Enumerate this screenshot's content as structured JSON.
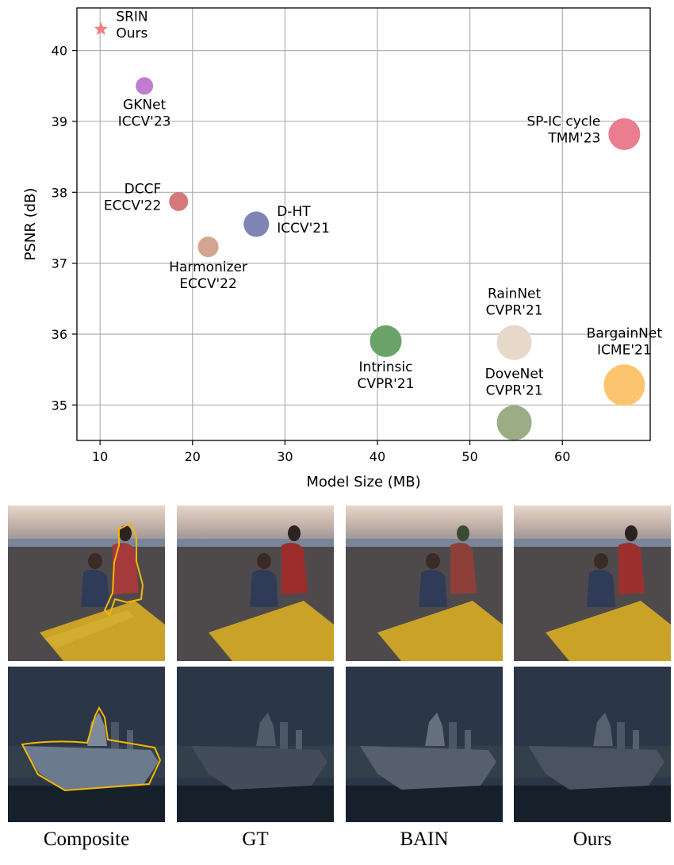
{
  "chart_data": {
    "type": "scatter",
    "xlabel": "Model Size (MB)",
    "ylabel": "PSNR (dB)",
    "xlim": [
      7.5,
      69.5
    ],
    "ylim": [
      34.5,
      40.6
    ],
    "xticks": [
      "10",
      "20",
      "30",
      "40",
      "50",
      "60"
    ],
    "yticks": [
      "35",
      "36",
      "37",
      "38",
      "39",
      "40"
    ],
    "grid": true,
    "points": [
      {
        "name": "SRIN",
        "venue": "Ours",
        "x": 10.1,
        "y": 40.3,
        "size": 1,
        "marker": "star",
        "color": "#f08080",
        "label_pos": "right"
      },
      {
        "name": "GKNet",
        "venue": "ICCV'23",
        "x": 14.8,
        "y": 39.5,
        "size": 11,
        "marker": "circle",
        "color": "#c27bcf",
        "label_pos": "below"
      },
      {
        "name": "SP-IC cycle",
        "venue": "TMM'23",
        "x": 66.7,
        "y": 38.82,
        "size": 20,
        "marker": "circle",
        "color": "#ea7d8f",
        "label_pos": "left"
      },
      {
        "name": "DCCF",
        "venue": "ECCV'22",
        "x": 18.5,
        "y": 37.87,
        "size": 12,
        "marker": "circle",
        "color": "#d4797c",
        "label_pos": "left"
      },
      {
        "name": "D-HT",
        "venue": "ICCV'21",
        "x": 26.9,
        "y": 37.55,
        "size": 16,
        "marker": "circle",
        "color": "#8083b6",
        "label_pos": "right"
      },
      {
        "name": "Harmonizer",
        "venue": "ECCV'22",
        "x": 21.7,
        "y": 37.23,
        "size": 13,
        "marker": "circle",
        "color": "#d3a48f",
        "label_pos": "below"
      },
      {
        "name": "Intrinsic",
        "venue": "CVPR'21",
        "x": 40.9,
        "y": 35.9,
        "size": 20,
        "marker": "circle",
        "color": "#6aa469",
        "label_pos": "below"
      },
      {
        "name": "RainNet",
        "venue": "CVPR'21",
        "x": 54.8,
        "y": 35.88,
        "size": 22,
        "marker": "circle",
        "color": "#e7d9c9",
        "label_pos": "above"
      },
      {
        "name": "BargainNet",
        "venue": "ICME'21",
        "x": 66.7,
        "y": 35.28,
        "size": 26,
        "marker": "circle",
        "color": "#fdc46f",
        "label_pos": "above"
      },
      {
        "name": "DoveNet",
        "venue": "CVPR'21",
        "x": 54.8,
        "y": 34.75,
        "size": 22,
        "marker": "circle",
        "color": "#9aad84",
        "label_pos": "above"
      }
    ]
  },
  "figure": {
    "columns": [
      "Composite",
      "GT",
      "BAIN",
      "Ours"
    ],
    "rows": [
      "beach-scene",
      "aircraft-carrier-scene"
    ],
    "mask_outline_color": "#f5b700"
  }
}
